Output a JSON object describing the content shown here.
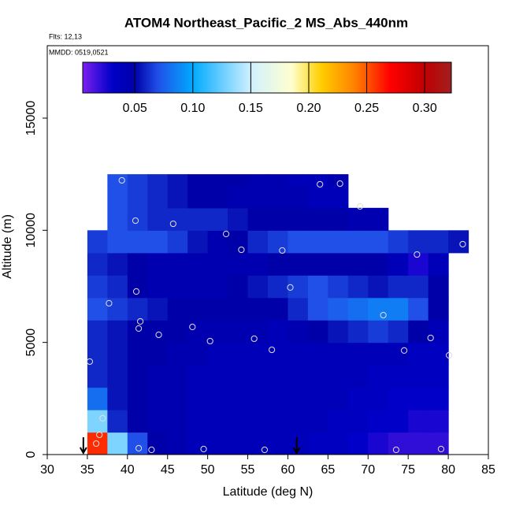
{
  "chart_data": {
    "type": "heatmap",
    "title": "ATOM4 Northeast_Pacific_2 MS_Abs_440nm",
    "annotations": [
      "Flts: 12,13",
      "MMDD: 0519,0521"
    ],
    "x_label": "Latitude (deg N)",
    "y_label": "Altitude (m)",
    "xlim": [
      30,
      85
    ],
    "ylim": [
      0,
      18230
    ],
    "xticks": [
      30,
      35,
      40,
      45,
      50,
      55,
      60,
      65,
      70,
      75,
      80,
      85
    ],
    "yticks": [
      0,
      5000,
      10000,
      15000
    ],
    "lat_edges": [
      35,
      37.5,
      40,
      42.5,
      45,
      47.5,
      50,
      52.5,
      55,
      57.5,
      60,
      62.5,
      65,
      67.5,
      70,
      72.5,
      75,
      77.5,
      80,
      82.5
    ],
    "alt_edges": [
      0,
      1000,
      2000,
      3000,
      4000,
      5000,
      6000,
      7000,
      8000,
      9000,
      10000,
      11000,
      12000,
      12500
    ],
    "z": [
      [
        0.26,
        0.13,
        0.07,
        0.05,
        0.045,
        0.04,
        0.04,
        0.04,
        0.04,
        0.04,
        0.04,
        0.035,
        0.035,
        0.03,
        0.025,
        0.02,
        0.02,
        0.02,
        null
      ],
      [
        0.13,
        0.06,
        0.05,
        0.045,
        0.045,
        0.04,
        0.04,
        0.04,
        0.04,
        0.04,
        0.04,
        0.04,
        0.035,
        0.035,
        0.03,
        0.03,
        0.025,
        0.025,
        null
      ],
      [
        0.08,
        0.055,
        0.05,
        0.045,
        0.045,
        0.04,
        0.04,
        0.04,
        0.04,
        0.04,
        0.04,
        0.04,
        0.04,
        0.035,
        0.035,
        0.03,
        0.03,
        0.03,
        null
      ],
      [
        0.06,
        0.055,
        0.05,
        0.045,
        0.045,
        0.04,
        0.04,
        0.04,
        0.04,
        0.04,
        0.04,
        0.04,
        0.04,
        0.04,
        0.035,
        0.035,
        0.035,
        0.035,
        null
      ],
      [
        0.06,
        0.055,
        0.05,
        0.05,
        0.045,
        0.045,
        0.04,
        0.04,
        0.04,
        0.04,
        0.04,
        0.04,
        0.04,
        0.04,
        0.04,
        0.04,
        0.035,
        0.035,
        null
      ],
      [
        0.06,
        0.055,
        0.05,
        0.05,
        0.05,
        0.045,
        0.045,
        0.045,
        0.045,
        0.04,
        0.045,
        0.05,
        0.055,
        0.06,
        0.065,
        0.06,
        0.05,
        0.04,
        null
      ],
      [
        0.07,
        0.065,
        0.06,
        0.055,
        0.05,
        0.05,
        0.05,
        0.05,
        0.05,
        0.05,
        0.06,
        0.07,
        0.075,
        0.08,
        0.085,
        0.085,
        0.07,
        0.05,
        null
      ],
      [
        0.065,
        0.06,
        0.05,
        0.045,
        0.045,
        0.045,
        0.045,
        0.05,
        0.055,
        0.06,
        0.065,
        0.07,
        0.065,
        0.06,
        0.055,
        0.06,
        0.06,
        0.05,
        null
      ],
      [
        0.06,
        0.055,
        0.05,
        0.045,
        0.045,
        0.045,
        0.045,
        0.045,
        0.045,
        0.05,
        0.05,
        0.05,
        0.05,
        0.05,
        0.05,
        0.04,
        0.025,
        0.04,
        null
      ],
      [
        0.065,
        0.07,
        0.07,
        0.07,
        0.065,
        0.055,
        0.045,
        0.05,
        0.06,
        0.065,
        0.07,
        0.07,
        0.07,
        0.07,
        0.07,
        0.065,
        0.06,
        0.06,
        0.055
      ],
      [
        null,
        0.07,
        0.065,
        0.06,
        0.06,
        0.06,
        0.06,
        0.055,
        0.05,
        0.05,
        0.05,
        0.05,
        0.05,
        0.045,
        0.045,
        null,
        null,
        null,
        null
      ],
      [
        null,
        0.07,
        0.065,
        0.06,
        0.055,
        0.05,
        0.05,
        0.045,
        0.045,
        0.045,
        0.045,
        0.04,
        0.04,
        null,
        null,
        null,
        null,
        null,
        null
      ],
      [
        null,
        0.07,
        0.065,
        0.06,
        0.055,
        0.05,
        0.05,
        0.05,
        0.045,
        0.045,
        0.04,
        0.04,
        0.045,
        null,
        null,
        null,
        null,
        null,
        null
      ]
    ],
    "clim": [
      0.005,
      0.323
    ],
    "cticks": [
      0.05,
      {
        "value": 0.1,
        "label": "0.10"
      },
      0.15,
      {
        "value": 0.2,
        "label": "0.20"
      },
      0.25,
      {
        "value": 0.3,
        "label": "0.30"
      }
    ],
    "colormap": [
      {
        "value": 0.005,
        "color": "#7b20f0"
      },
      {
        "value": 0.03,
        "color": "#0000c8"
      },
      {
        "value": 0.05,
        "color": "#0000a8"
      },
      {
        "value": 0.07,
        "color": "#2050e8"
      },
      {
        "value": 0.1,
        "color": "#00aaff"
      },
      {
        "value": 0.15,
        "color": "#d0f0ff"
      },
      {
        "value": 0.185,
        "color": "#ffffd0"
      },
      {
        "value": 0.21,
        "color": "#ffd000"
      },
      {
        "value": 0.24,
        "color": "#ff8000"
      },
      {
        "value": 0.27,
        "color": "#ff0000"
      },
      {
        "value": 0.3,
        "color": "#c00000"
      },
      {
        "value": 0.323,
        "color": "#a02020"
      }
    ],
    "points": {
      "color": "#e0e0e0",
      "x": [
        39.3,
        64.0,
        66.5,
        69.0,
        41.0,
        45.7,
        52.3,
        54.2,
        59.3,
        81.8,
        76.1,
        41.1,
        60.3,
        37.7,
        71.9,
        41.6,
        41.4,
        48.1,
        43.9,
        50.3,
        55.8,
        58.0,
        77.8,
        74.5,
        80.1,
        35.3,
        36.9,
        36.5,
        36.1,
        41.4,
        43.0,
        49.5,
        57.1,
        73.5,
        79.1
      ],
      "y": [
        12225,
        12050,
        12080,
        11065,
        10430,
        10290,
        9835,
        9130,
        9100,
        9380,
        8920,
        7270,
        7450,
        6745,
        6215,
        5935,
        5620,
        5690,
        5340,
        5060,
        5165,
        4670,
        5200,
        4640,
        4425,
        4145,
        1615,
        880,
        490,
        280,
        210,
        245,
        210,
        210,
        245
      ]
    },
    "arrows_x": [
      34.5,
      61.1
    ]
  }
}
